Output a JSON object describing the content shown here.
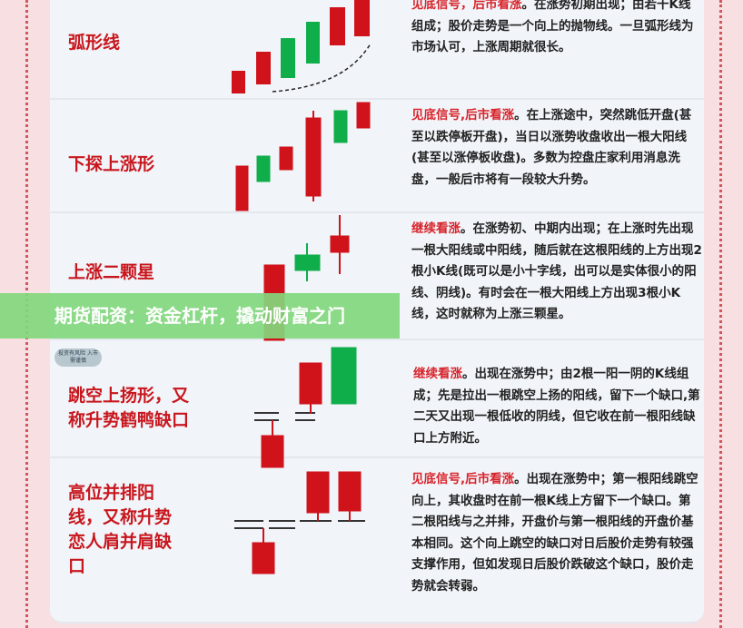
{
  "patterns": [
    {
      "name": "弧形线",
      "signal": "见底信号，后市看涨",
      "text": "。在涨势初期出现；由若干K线组成；股价走势是一个向上的抛物线。一旦弧形线为市场认可，上涨周期就很长。"
    },
    {
      "name": "下探上涨形",
      "signal": "见底信号,后市看涨",
      "text": "。在上涨途中，突然跳低开盘(甚至以跌停板开盘)，当日以涨势收盘收出一根大阳线(甚至以涨停板收盘)。多数为控盘庄家利用消息洗盘，一般后市将有一段较大升势。"
    },
    {
      "name": "上涨二颗星",
      "signal": "继续看涨",
      "text": "。在涨势初、中期内出现；在上涨时先出现一根大阳线或中阳线，随后就在这根阳线的上方出现2根小K线(既可以是小十字线，出可以是实体很小的阳线、阴线)。有时会在一根大阳线上方出现3根小K线，这时就称为上涨三颗星。"
    },
    {
      "name": "跳空上扬形，又称升势鹤鸭缺口",
      "signal": "继续看涨",
      "text": "。出现在涨势中；由2根一阳一阴的K线组成；先是拉出一根跳空上扬的阳线，留下一个缺口,第二天又出现一根低收的阴线，但它收在前一根阳线缺口上方附近。"
    },
    {
      "name": "高位并排阳线，又称升势恋人肩并肩缺口",
      "signal": "见底信号,后市看涨",
      "text": "。出现在涨势中；第一根阳线跳空向上，其收盘时在前一根K线上方留下一个缺口。第二根阳线与之并排，开盘价与第一根阳线的开盘价基本相同。这个向上跳空的缺口对日后股价走势有较强支撑作用，但如发现日后股价跌破这个缺口，股价走势就会转弱。"
    }
  ],
  "badge": "投资有风险 入市需谨慎",
  "banner": "期货配资：资金杠杆，撬动财富之门",
  "colors": {
    "up_red": "#d0121b",
    "down_green": "#0fae4b",
    "banner_green": "#82d77d"
  }
}
